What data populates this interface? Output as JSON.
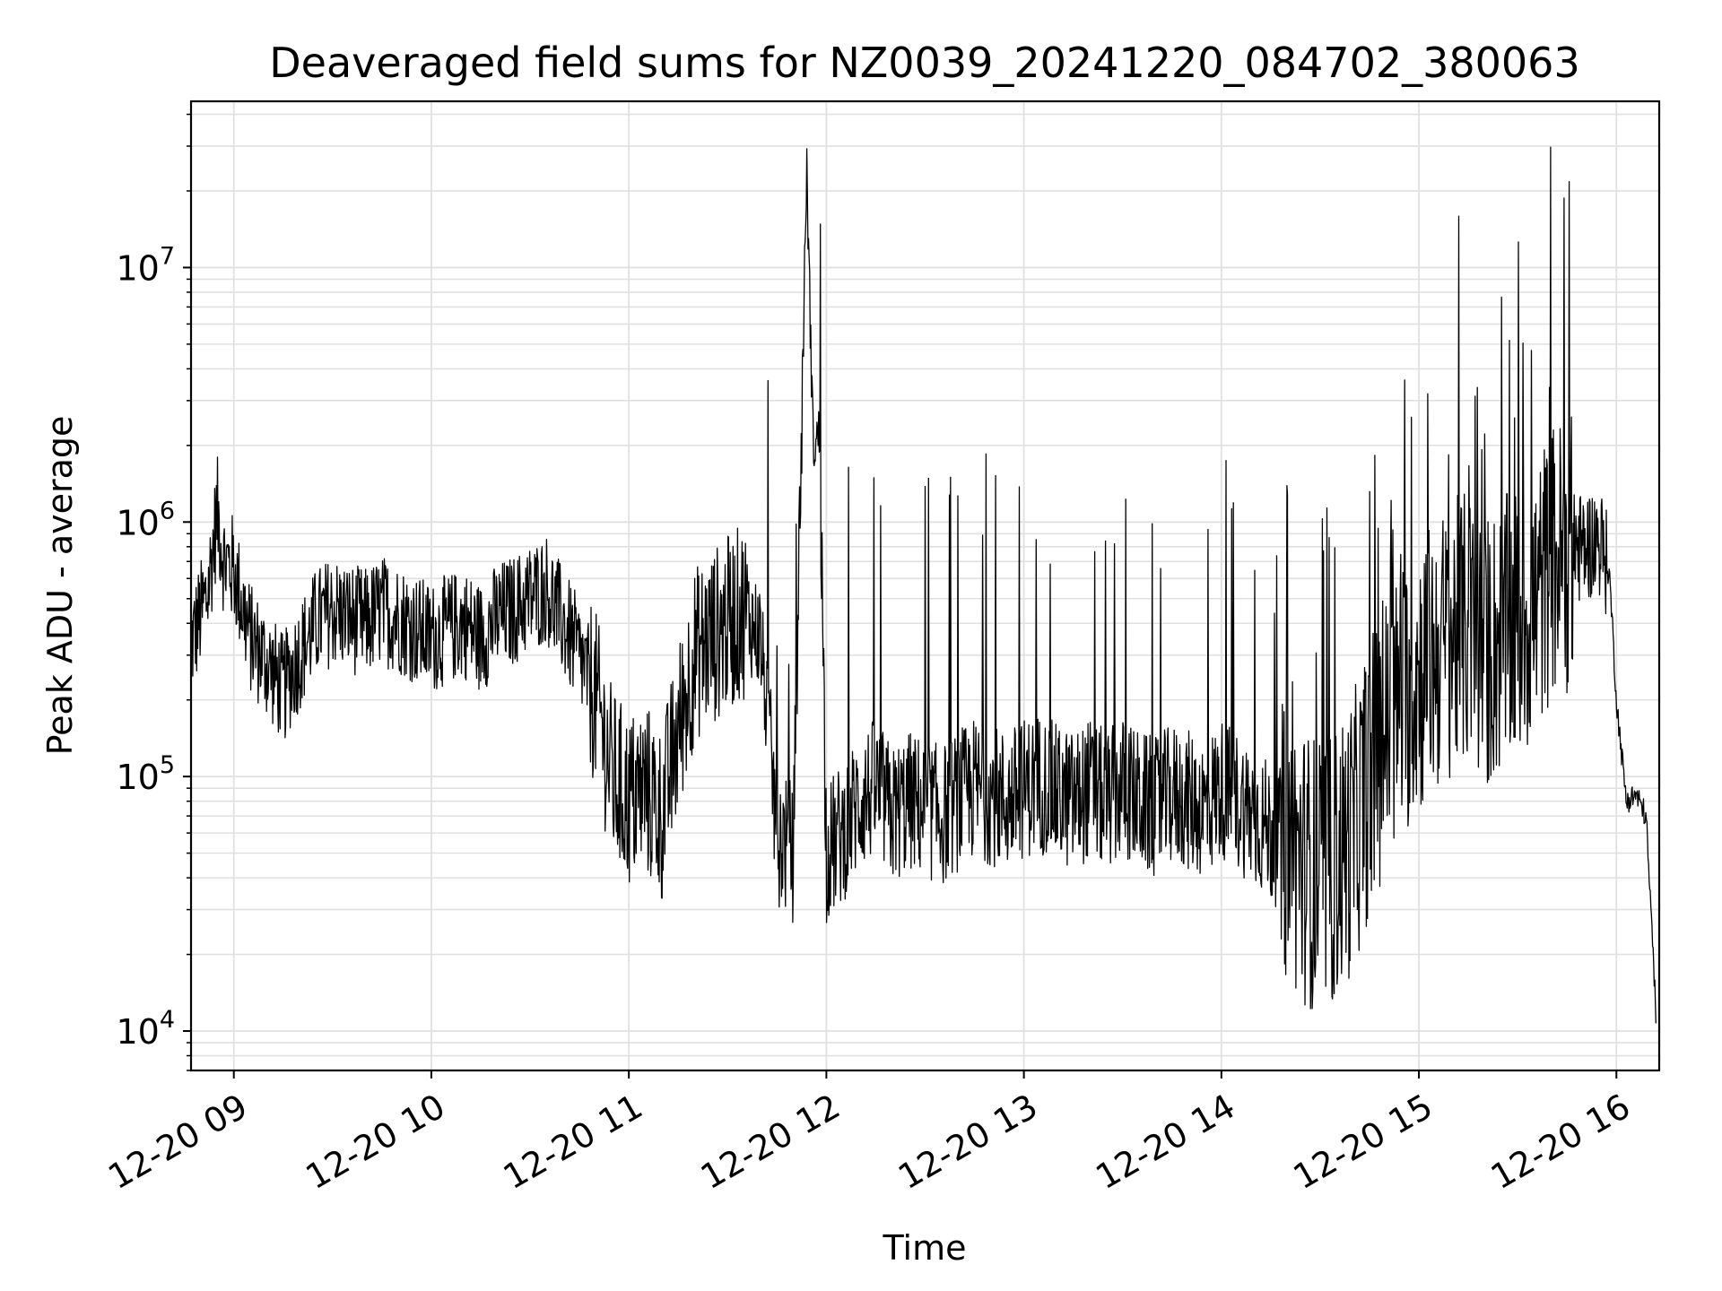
{
  "chart_data": {
    "type": "line",
    "title": "Deaveraged field sums for NZ0039_20241220_084702_380063",
    "xlabel": "Time",
    "ylabel": "Peak ADU - average",
    "x_axis": {
      "kind": "time",
      "range": [
        "2024-12-20 08:47",
        "2024-12-20 16:13"
      ],
      "ticks": [
        {
          "value": "2024-12-20 09:00",
          "label": "12-20 09"
        },
        {
          "value": "2024-12-20 10:00",
          "label": "12-20 10"
        },
        {
          "value": "2024-12-20 11:00",
          "label": "12-20 11"
        },
        {
          "value": "2024-12-20 12:00",
          "label": "12-20 12"
        },
        {
          "value": "2024-12-20 13:00",
          "label": "12-20 13"
        },
        {
          "value": "2024-12-20 14:00",
          "label": "12-20 14"
        },
        {
          "value": "2024-12-20 15:00",
          "label": "12-20 15"
        },
        {
          "value": "2024-12-20 16:00",
          "label": "12-20 16"
        }
      ]
    },
    "y_axis": {
      "scale": "log",
      "ylim": [
        7000,
        45000000
      ],
      "ticks": [
        {
          "value": 10000,
          "base": "10",
          "exp": "4"
        },
        {
          "value": 100000,
          "base": "10",
          "exp": "5"
        },
        {
          "value": 1000000,
          "base": "10",
          "exp": "6"
        },
        {
          "value": 10000000,
          "base": "10",
          "exp": "7"
        }
      ]
    },
    "grid": true,
    "line_color": "#000000",
    "series": [
      {
        "name": "",
        "x": [
          "2024-12-20 08:47",
          "2024-12-20 08:52",
          "2024-12-20 08:55",
          "2024-12-20 08:57",
          "2024-12-20 09:00",
          "2024-12-20 09:05",
          "2024-12-20 09:10",
          "2024-12-20 09:15",
          "2024-12-20 09:20",
          "2024-12-20 09:25",
          "2024-12-20 09:30",
          "2024-12-20 09:35",
          "2024-12-20 09:40",
          "2024-12-20 09:45",
          "2024-12-20 09:50",
          "2024-12-20 09:55",
          "2024-12-20 10:00",
          "2024-12-20 10:05",
          "2024-12-20 10:10",
          "2024-12-20 10:15",
          "2024-12-20 10:20",
          "2024-12-20 10:25",
          "2024-12-20 10:30",
          "2024-12-20 10:35",
          "2024-12-20 10:40",
          "2024-12-20 10:45",
          "2024-12-20 10:50",
          "2024-12-20 10:55",
          "2024-12-20 11:00",
          "2024-12-20 11:05",
          "2024-12-20 11:10",
          "2024-12-20 11:15",
          "2024-12-20 11:20",
          "2024-12-20 11:25",
          "2024-12-20 11:30",
          "2024-12-20 11:35",
          "2024-12-20 11:40",
          "2024-12-20 11:45",
          "2024-12-20 11:50",
          "2024-12-20 11:54",
          "2024-12-20 11:56",
          "2024-12-20 11:58",
          "2024-12-20 12:00",
          "2024-12-20 12:05",
          "2024-12-20 12:10",
          "2024-12-20 12:15",
          "2024-12-20 12:20",
          "2024-12-20 12:25",
          "2024-12-20 12:30",
          "2024-12-20 12:35",
          "2024-12-20 12:40",
          "2024-12-20 12:45",
          "2024-12-20 12:50",
          "2024-12-20 12:55",
          "2024-12-20 13:00",
          "2024-12-20 13:05",
          "2024-12-20 13:10",
          "2024-12-20 13:15",
          "2024-12-20 13:20",
          "2024-12-20 13:25",
          "2024-12-20 13:30",
          "2024-12-20 13:35",
          "2024-12-20 13:40",
          "2024-12-20 13:45",
          "2024-12-20 13:50",
          "2024-12-20 13:55",
          "2024-12-20 14:00",
          "2024-12-20 14:05",
          "2024-12-20 14:10",
          "2024-12-20 14:15",
          "2024-12-20 14:20",
          "2024-12-20 14:25",
          "2024-12-20 14:30",
          "2024-12-20 14:35",
          "2024-12-20 14:40",
          "2024-12-20 14:45",
          "2024-12-20 14:50",
          "2024-12-20 14:55",
          "2024-12-20 15:00",
          "2024-12-20 15:05",
          "2024-12-20 15:10",
          "2024-12-20 15:15",
          "2024-12-20 15:20",
          "2024-12-20 15:25",
          "2024-12-20 15:30",
          "2024-12-20 15:35",
          "2024-12-20 15:40",
          "2024-12-20 15:45",
          "2024-12-20 15:50",
          "2024-12-20 15:55",
          "2024-12-20 15:58",
          "2024-12-20 16:00",
          "2024-12-20 16:03",
          "2024-12-20 16:06",
          "2024-12-20 16:09",
          "2024-12-20 16:12"
        ],
        "y": [
          330000,
          520000,
          1100000,
          700000,
          650000,
          350000,
          280000,
          220000,
          300000,
          400000,
          450000,
          420000,
          400000,
          450000,
          420000,
          380000,
          350000,
          380000,
          400000,
          350000,
          420000,
          450000,
          500000,
          550000,
          400000,
          300000,
          200000,
          100000,
          80000,
          90000,
          70000,
          150000,
          300000,
          350000,
          400000,
          450000,
          350000,
          60000,
          50000,
          25000000,
          2000000,
          2200000,
          50000,
          60000,
          80000,
          90000,
          70000,
          80000,
          75000,
          70000,
          80000,
          90000,
          85000,
          80000,
          90000,
          95000,
          85000,
          80000,
          90000,
          80000,
          90000,
          80000,
          75000,
          85000,
          80000,
          75000,
          90000,
          80000,
          70000,
          60000,
          55000,
          45000,
          40000,
          45000,
          60000,
          100000,
          150000,
          200000,
          250000,
          300000,
          350000,
          380000,
          300000,
          350000,
          400000,
          450000,
          700000,
          750000,
          800000,
          850000,
          600000,
          200000,
          80000,
          85000,
          70000,
          12000
        ]
      }
    ]
  }
}
